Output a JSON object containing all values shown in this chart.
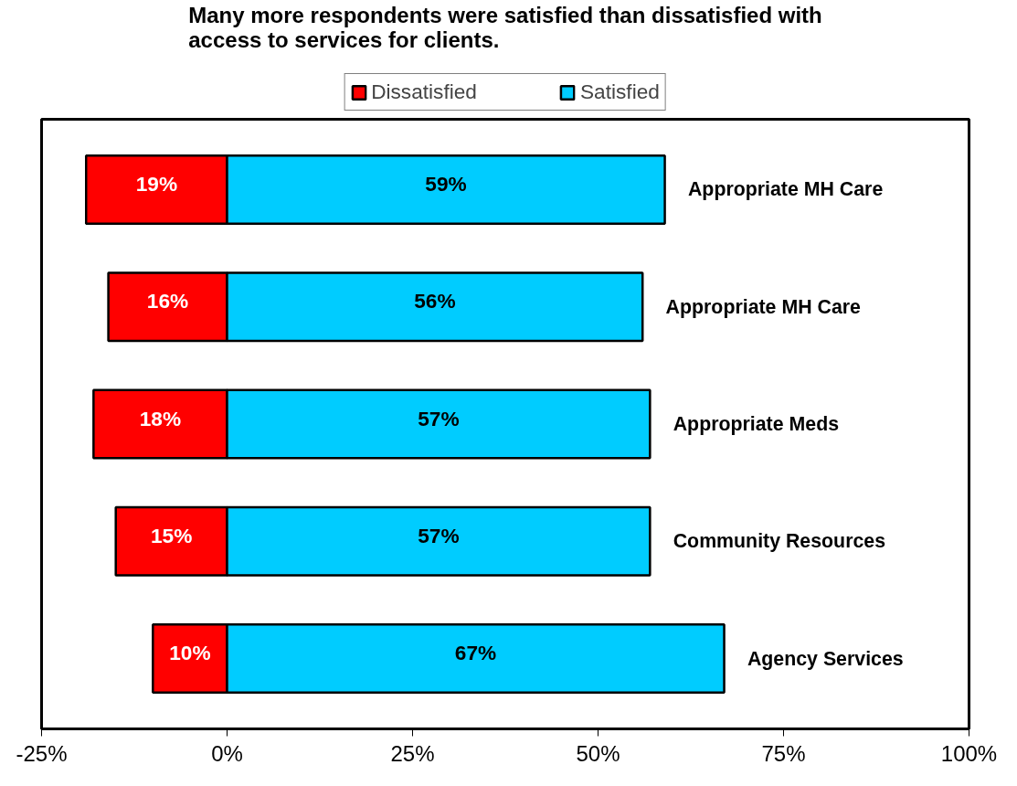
{
  "chart_data": {
    "type": "bar",
    "orientation": "horizontal",
    "title": "Many more respondents were satisfied than dissatisfied with\naccess to services for clients.",
    "categories": [
      "Appropriate MH Care",
      "Appropriate MH Care",
      "Appropriate Meds",
      "Community Resources",
      "Agency Services"
    ],
    "series": [
      {
        "name": "Dissatisfied",
        "color": "#ff0000",
        "base": [
          -19,
          -16,
          -18,
          -15,
          -10
        ],
        "values": [
          19,
          16,
          18,
          15,
          10
        ],
        "value_labels": [
          "19%",
          "16%",
          "18%",
          "15%",
          "10%"
        ]
      },
      {
        "name": "Satisfied",
        "color": "#00ccff",
        "values": [
          59,
          56,
          57,
          57,
          67
        ],
        "value_labels": [
          "59%",
          "56%",
          "57%",
          "57%",
          "67%"
        ]
      }
    ],
    "xlim": [
      -25,
      100
    ],
    "xticks": [
      {
        "value": -25,
        "label": "-25%"
      },
      {
        "value": 0,
        "label": "0%"
      },
      {
        "value": 25,
        "label": "25%"
      },
      {
        "value": 50,
        "label": "50%"
      },
      {
        "value": 75,
        "label": "75%"
      },
      {
        "value": 100,
        "label": "100%"
      }
    ],
    "grid": false,
    "legend": "top"
  }
}
